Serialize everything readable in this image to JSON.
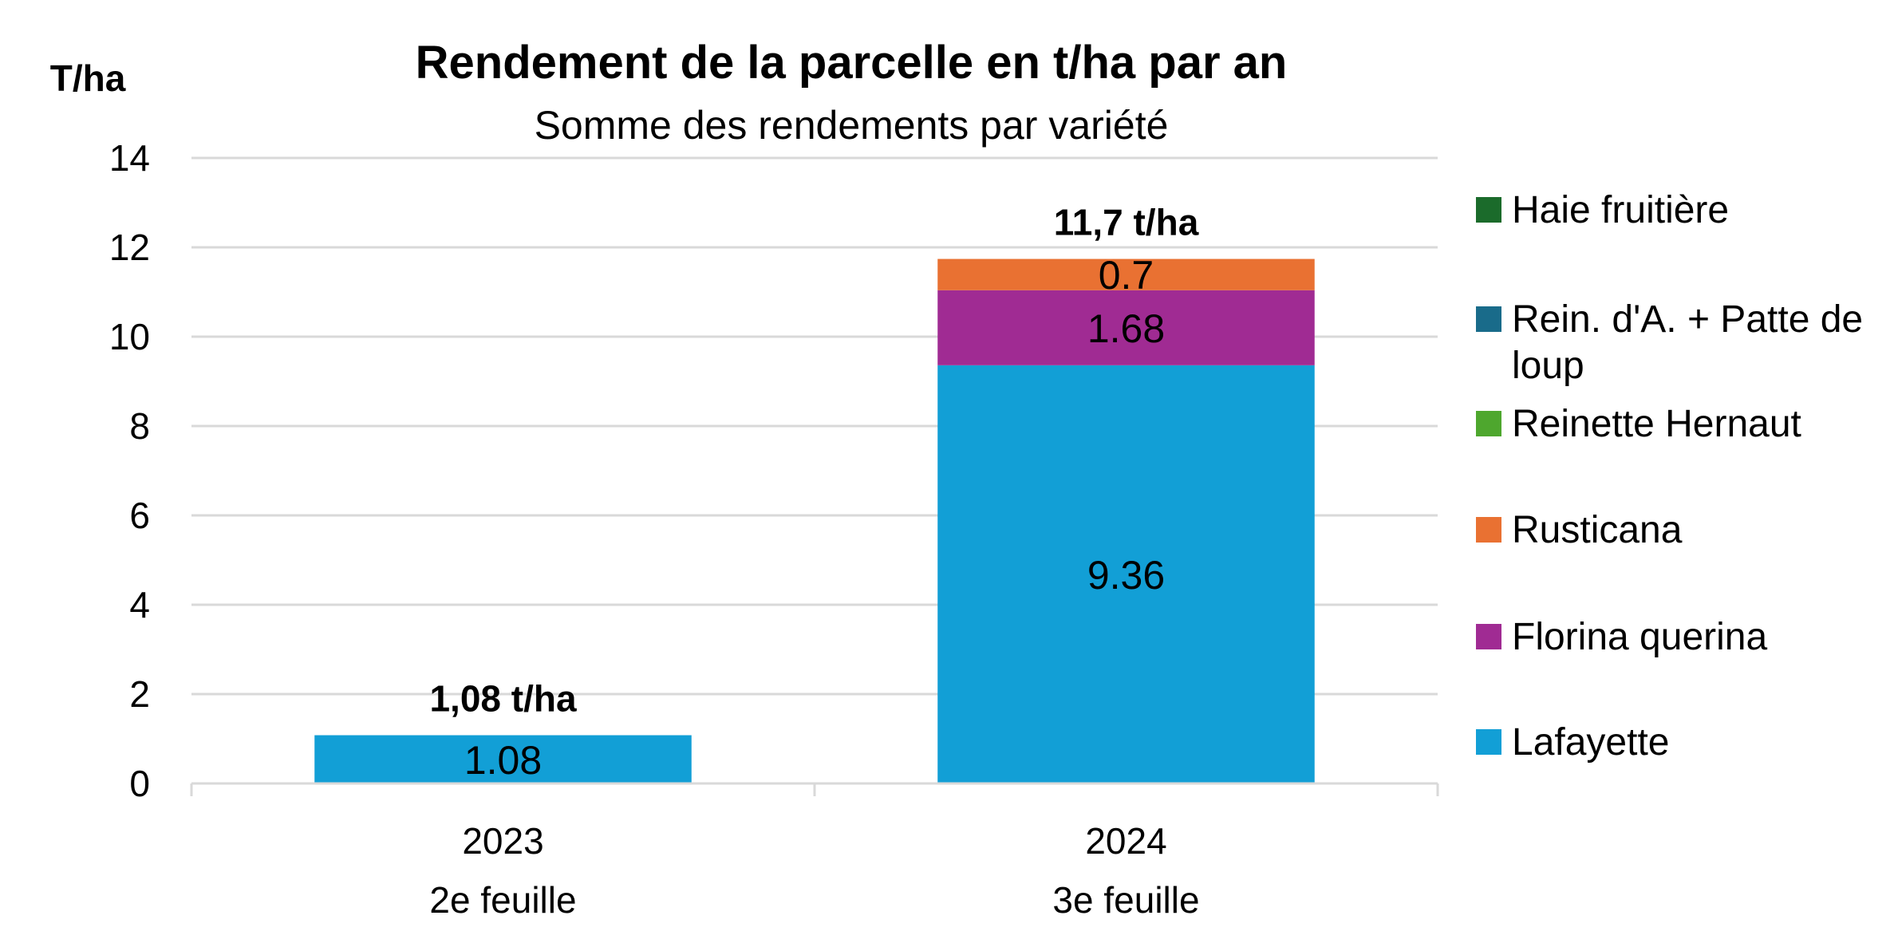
{
  "chart_data": {
    "type": "bar",
    "stacked": true,
    "title": "Rendement de la parcelle en t/ha par an",
    "subtitle": "Somme des rendements par variété",
    "ylabel": "T/ha",
    "xlabel": "",
    "ylim": [
      0,
      14
    ],
    "yticks": [
      0,
      2,
      4,
      6,
      8,
      10,
      12,
      14
    ],
    "grid": true,
    "legend_position": "right",
    "categories": [
      {
        "label": "2023",
        "sublabel": "2e feuille",
        "total_label": "1,08 t/ha"
      },
      {
        "label": "2024",
        "sublabel": "3e feuille",
        "total_label": "11,7 t/ha"
      }
    ],
    "series": [
      {
        "name": "Lafayette",
        "color": "#129fd6",
        "values": [
          1.08,
          9.36
        ],
        "labels": [
          "1.08",
          "9.36"
        ]
      },
      {
        "name": "Florina querina",
        "color": "#a02b93",
        "values": [
          0,
          1.68
        ],
        "labels": [
          "",
          "1.68"
        ]
      },
      {
        "name": "Rusticana",
        "color": "#e97132",
        "values": [
          0,
          0.7
        ],
        "labels": [
          "",
          "0.7"
        ]
      },
      {
        "name": "Reinette Hernaut",
        "color": "#4ea72e",
        "values": [
          0,
          0
        ],
        "labels": [
          "",
          ""
        ]
      },
      {
        "name": "Rein. d'A. + Patte de loup",
        "color": "#196b8a",
        "values": [
          0,
          0
        ],
        "labels": [
          "",
          ""
        ]
      },
      {
        "name": "Haie fruitière",
        "color": "#1b6b2b",
        "values": [
          0,
          0
        ],
        "labels": [
          "",
          ""
        ]
      }
    ],
    "legend_order": [
      "Haie fruitière",
      "Rein. d'A. + Patte de loup",
      "Reinette Hernaut",
      "Rusticana",
      "Florina querina",
      "Lafayette"
    ]
  }
}
